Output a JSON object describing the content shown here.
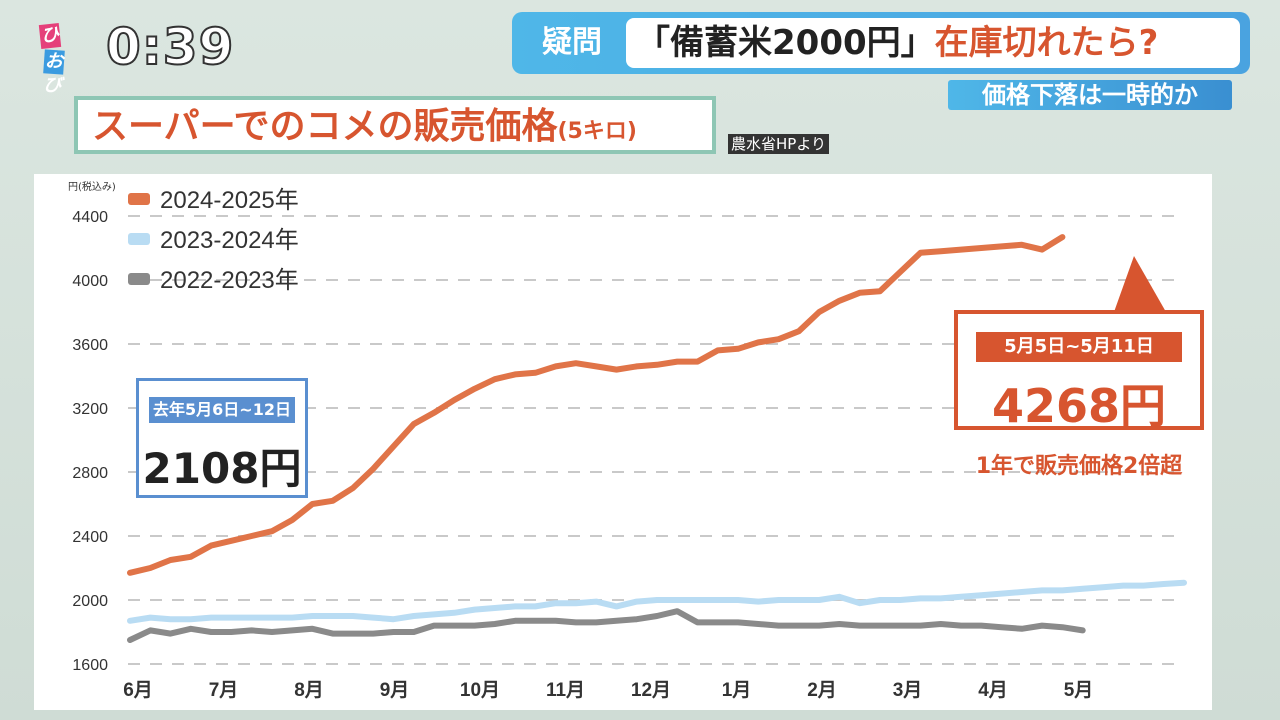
{
  "overlay": {
    "logo_top": "ひる",
    "logo_bottom": "おび",
    "clock": "0:39",
    "headline_tag": "疑問",
    "headline_main": "「備蓄米2000円」",
    "headline_accent": "在庫切れたら?",
    "subheadline": "価格下落は一時的か"
  },
  "title": {
    "main": "スーパーでのコメの販売価格",
    "sub": "(5キロ)",
    "source": "農水省HPより"
  },
  "colors": {
    "s2024": "#e07448",
    "s2023": "#b9dcf3",
    "s2022": "#8a8a8a",
    "accent_orange": "#d7552f",
    "accent_blue": "#5a8fd0"
  },
  "annotations": {
    "left_label": "去年5月6日~12日",
    "left_value": "2108円",
    "right_label": "5月5日~5月11日",
    "right_value": "4268円",
    "right_note": "1年で販売価格2倍超"
  },
  "chart_data": {
    "type": "line",
    "title": "スーパーでのコメの販売価格(5キロ)",
    "ylabel": "円(税込み)",
    "ylim": [
      1600,
      4400
    ],
    "yticks": [
      1600,
      2000,
      2400,
      2800,
      3200,
      3600,
      4000,
      4400
    ],
    "xlabels": [
      "6月",
      "7月",
      "8月",
      "9月",
      "10月",
      "11月",
      "12月",
      "1月",
      "2月",
      "3月",
      "4月",
      "5月"
    ],
    "grid": true,
    "legend_position": "top-left",
    "series": [
      {
        "name": "2024-2025年",
        "color": "#e07448",
        "values": [
          2170,
          2200,
          2250,
          2270,
          2340,
          2370,
          2400,
          2430,
          2500,
          2600,
          2620,
          2700,
          2820,
          2960,
          3100,
          3170,
          3250,
          3320,
          3380,
          3410,
          3420,
          3460,
          3480,
          3460,
          3440,
          3460,
          3470,
          3490,
          3490,
          3560,
          3570,
          3610,
          3630,
          3680,
          3800,
          3870,
          3920,
          3930,
          4050,
          4170,
          4180,
          4190,
          4200,
          4210,
          4220,
          4190,
          4268
        ]
      },
      {
        "name": "2023-2024年",
        "color": "#b9dcf3",
        "values": [
          1870,
          1890,
          1880,
          1880,
          1890,
          1890,
          1890,
          1890,
          1890,
          1900,
          1900,
          1900,
          1890,
          1880,
          1900,
          1910,
          1920,
          1940,
          1950,
          1960,
          1960,
          1980,
          1980,
          1990,
          1960,
          1990,
          2000,
          2000,
          2000,
          2000,
          2000,
          1990,
          2000,
          2000,
          2000,
          2020,
          1980,
          2000,
          2000,
          2010,
          2010,
          2020,
          2030,
          2040,
          2050,
          2060,
          2060,
          2070,
          2080,
          2090,
          2090,
          2100,
          2108
        ]
      },
      {
        "name": "2022-2023年",
        "color": "#8a8a8a",
        "values": [
          1750,
          1810,
          1790,
          1820,
          1800,
          1800,
          1810,
          1800,
          1810,
          1820,
          1790,
          1790,
          1790,
          1800,
          1800,
          1840,
          1840,
          1840,
          1850,
          1870,
          1870,
          1870,
          1860,
          1860,
          1870,
          1880,
          1900,
          1930,
          1860,
          1860,
          1860,
          1850,
          1840,
          1840,
          1840,
          1850,
          1840,
          1840,
          1840,
          1840,
          1850,
          1840,
          1840,
          1830,
          1820,
          1840,
          1830,
          1810
        ]
      }
    ]
  }
}
